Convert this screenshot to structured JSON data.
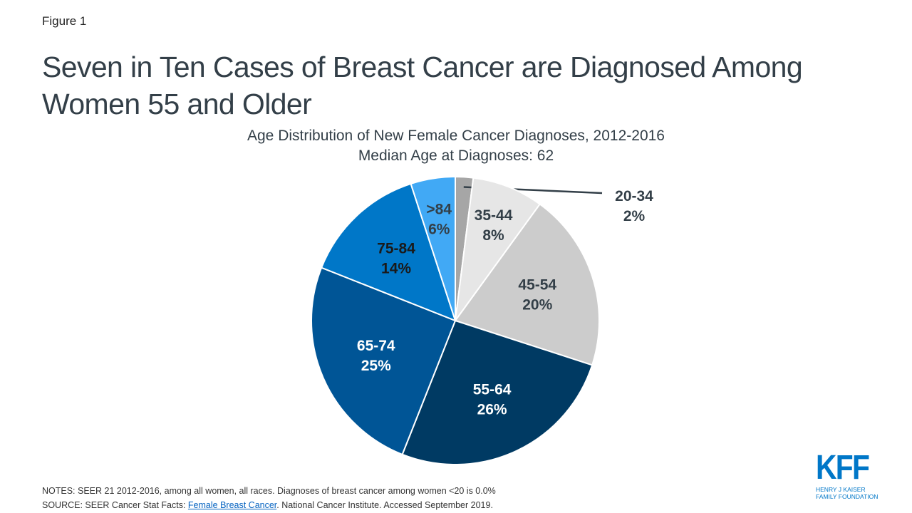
{
  "figure_label": "Figure 1",
  "title": "Seven in Ten Cases of Breast Cancer are Diagnosed Among Women 55 and Older",
  "chart_data": {
    "type": "pie",
    "title": "Age Distribution of New Female Cancer Diagnoses, 2012-2016",
    "subtitle": "Median Age at Diagnoses: 62",
    "start": "top, clockwise",
    "slices": [
      {
        "label": "20-34",
        "value": 2,
        "display": "2%",
        "color": "#a6a6a6",
        "text_color": "#333f48"
      },
      {
        "label": "35-44",
        "value": 8,
        "display": "8%",
        "color": "#e6e6e6",
        "text_color": "#333f48"
      },
      {
        "label": "45-54",
        "value": 20,
        "display": "20%",
        "color": "#cccccc",
        "text_color": "#333f48"
      },
      {
        "label": "55-64",
        "value": 26,
        "display": "26%",
        "color": "#003a63",
        "text_color": "#ffffff"
      },
      {
        "label": "65-74",
        "value": 25,
        "display": "25%",
        "color": "#005596",
        "text_color": "#ffffff"
      },
      {
        "label": "75-84",
        "value": 14,
        "display": "14%",
        "color": "#0077c8",
        "text_color": "#1a1a1a"
      },
      {
        "label": ">84",
        "value": 6,
        "display": "6%",
        "color": "#41a9f5",
        "text_color": "#333f48"
      }
    ]
  },
  "notes": "NOTES: SEER 21 2012-2016,  among all women, all races. Diagnoses of breast cancer among women <20 is 0.0%",
  "source_prefix": "SOURCE: SEER Cancer Stat Facts: ",
  "source_link": "Female Breast Cancer",
  "source_suffix": ". National Cancer Institute. Accessed September 2019.",
  "logo": {
    "mark": "KFF",
    "line1": "HENRY J KAISER",
    "line2": "FAMILY FOUNDATION",
    "color": "#0077c8"
  }
}
